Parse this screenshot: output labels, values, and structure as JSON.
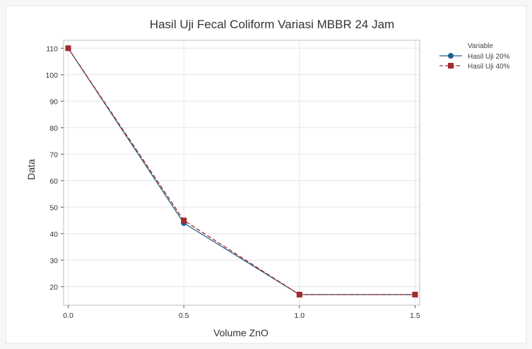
{
  "chart_data": {
    "type": "line",
    "title": "Hasil Uji Fecal Coliform Variasi MBBR 24 Jam",
    "xlabel": "Volume ZnO",
    "ylabel": "Data",
    "x": [
      0.0,
      0.5,
      1.0,
      1.5
    ],
    "x_ticks": [
      "0.0",
      "0.5",
      "1.0",
      "1.5"
    ],
    "y_ticks": [
      "20",
      "30",
      "40",
      "50",
      "60",
      "70",
      "80",
      "90",
      "100",
      "110"
    ],
    "xlim": [
      -0.02,
      1.52
    ],
    "ylim": [
      13,
      113
    ],
    "grid": true,
    "legend_title": "Variable",
    "legend_position": "top-right-outside",
    "series": [
      {
        "name": "Hasil Uji 20%",
        "values": [
          110,
          44,
          17,
          17
        ],
        "color": "#1f5f8b",
        "marker": "circle",
        "line": "solid"
      },
      {
        "name": "Hasil Uji 40%",
        "values": [
          110,
          45,
          17,
          17
        ],
        "color": "#a52a2a",
        "marker": "square",
        "line": "dashed"
      }
    ]
  }
}
